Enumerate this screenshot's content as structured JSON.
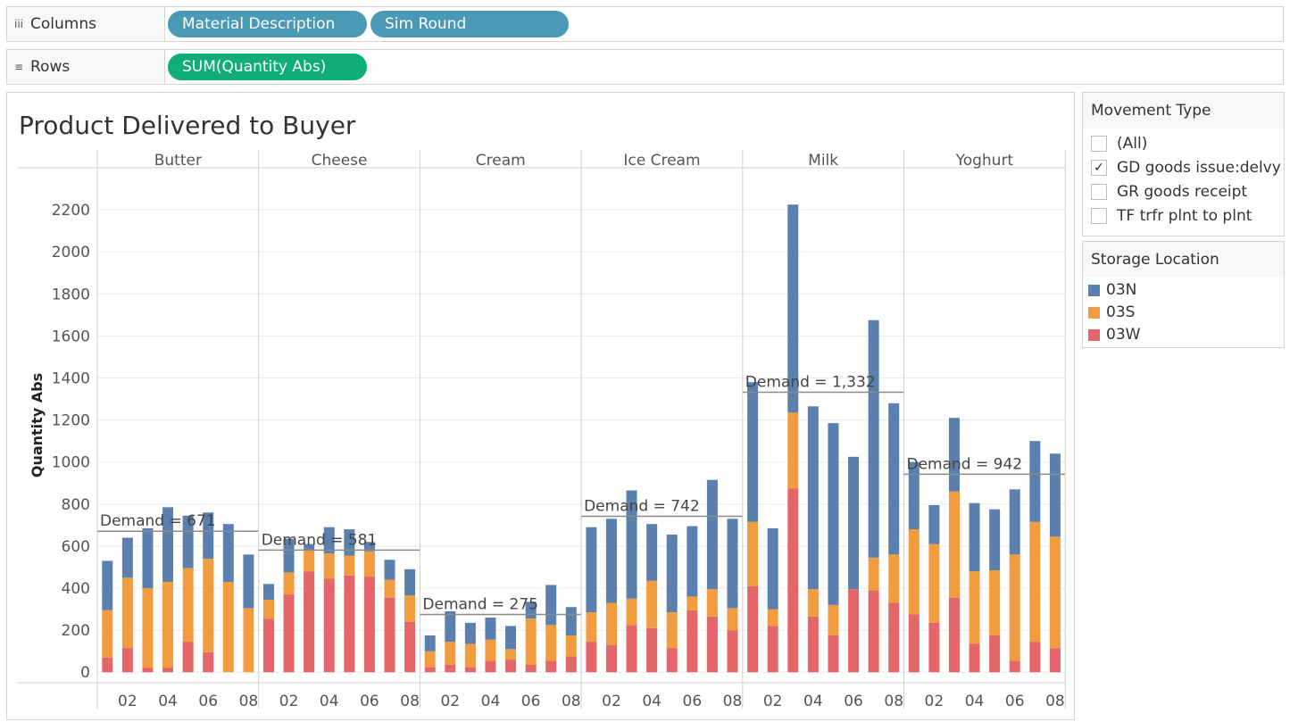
{
  "shelves": {
    "columns": {
      "label": "Columns",
      "icon": "iii",
      "pills": [
        "Material Description",
        "Sim Round"
      ]
    },
    "rows": {
      "label": "Rows",
      "icon": "≡",
      "pills": [
        "SUM(Quantity Abs)"
      ]
    }
  },
  "filter": {
    "title": "Movement Type",
    "items": [
      {
        "label": "(All)",
        "checked": false
      },
      {
        "label": "GD goods issue:delvy",
        "checked": true
      },
      {
        "label": "GR goods receipt",
        "checked": false
      },
      {
        "label": "TF trfr plnt to plnt",
        "checked": false
      }
    ]
  },
  "legend": {
    "title": "Storage Location",
    "items": [
      {
        "label": "03N",
        "color": "#5b80ad"
      },
      {
        "label": "03S",
        "color": "#f19d3f"
      },
      {
        "label": "03W",
        "color": "#e46668"
      }
    ]
  },
  "chart_data": {
    "type": "bar",
    "stacked": true,
    "title": "Product Delivered to Buyer",
    "ylabel": "Quantity Abs",
    "ylim": [
      -50,
      2400
    ],
    "yticks": [
      0,
      200,
      400,
      600,
      800,
      1000,
      1200,
      1400,
      1600,
      1800,
      2000,
      2200
    ],
    "xticks": [
      "02",
      "04",
      "06",
      "08"
    ],
    "x": [
      1,
      2,
      3,
      4,
      5,
      6,
      7,
      8
    ],
    "stack_order": [
      "03W",
      "03S",
      "03N"
    ],
    "grid": true,
    "legend_position": "right",
    "panels": [
      {
        "name": "Butter",
        "demand_label": "Demand = 671",
        "demand": 671,
        "series": {
          "03W": [
            70,
            115,
            20,
            20,
            145,
            95,
            0,
            0
          ],
          "03S": [
            225,
            335,
            380,
            410,
            350,
            445,
            430,
            305
          ],
          "03N": [
            235,
            190,
            285,
            355,
            250,
            220,
            275,
            255
          ]
        }
      },
      {
        "name": "Cheese",
        "demand_label": "Demand = 581",
        "demand": 581,
        "series": {
          "03W": [
            255,
            370,
            480,
            445,
            460,
            455,
            355,
            240
          ],
          "03S": [
            90,
            105,
            100,
            120,
            95,
            120,
            85,
            125
          ],
          "03N": [
            75,
            160,
            30,
            125,
            125,
            45,
            95,
            125
          ]
        }
      },
      {
        "name": "Cream",
        "demand_label": "Demand = 275",
        "demand": 275,
        "series": {
          "03W": [
            25,
            35,
            25,
            55,
            60,
            35,
            55,
            75
          ],
          "03S": [
            75,
            110,
            110,
            100,
            50,
            220,
            170,
            100
          ],
          "03N": [
            75,
            145,
            100,
            105,
            110,
            80,
            190,
            135
          ]
        }
      },
      {
        "name": "Ice Cream",
        "demand_label": "Demand = 742",
        "demand": 742,
        "series": {
          "03W": [
            145,
            130,
            225,
            210,
            115,
            295,
            265,
            200
          ],
          "03S": [
            140,
            200,
            125,
            225,
            170,
            65,
            130,
            105
          ],
          "03N": [
            405,
            400,
            515,
            270,
            370,
            335,
            520,
            425
          ]
        }
      },
      {
        "name": "Milk",
        "demand_label": "Demand = 1,332",
        "demand": 1332,
        "series": {
          "03W": [
            410,
            220,
            875,
            265,
            175,
            395,
            390,
            330
          ],
          "03S": [
            305,
            80,
            360,
            130,
            145,
            0,
            155,
            230
          ],
          "03N": [
            665,
            385,
            990,
            870,
            865,
            630,
            1130,
            720
          ]
        }
      },
      {
        "name": "Yoghurt",
        "demand_label": "Demand = 942",
        "demand": 942,
        "series": {
          "03W": [
            275,
            235,
            355,
            135,
            175,
            55,
            145,
            115
          ],
          "03S": [
            405,
            375,
            505,
            345,
            310,
            505,
            570,
            530
          ],
          "03N": [
            320,
            185,
            350,
            325,
            290,
            310,
            385,
            395
          ]
        }
      }
    ]
  }
}
